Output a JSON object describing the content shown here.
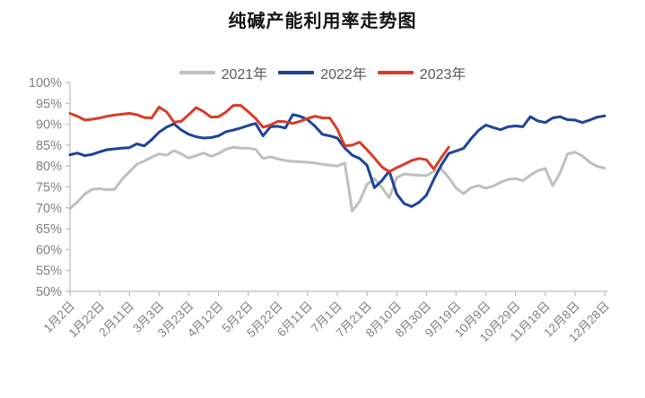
{
  "title": "纯碱产能利用率走势图",
  "chart_data": {
    "type": "line",
    "title": "纯碱产能利用率走势图",
    "grid": false,
    "legend_position": "top",
    "ylim": [
      50,
      100
    ],
    "y_tick_step": 5,
    "y_tick_labels": [
      "100%",
      "95%",
      "90%",
      "85%",
      "80%",
      "75%",
      "70%",
      "65%",
      "60%",
      "55%",
      "50%"
    ],
    "x_label_every": 4,
    "x_tick_labels": [
      "1月2日",
      "1月22日",
      "2月11日",
      "3月3日",
      "3月23日",
      "4月12日",
      "5月2日",
      "5月22日",
      "6月11日",
      "7月1日",
      "7月21日",
      "8月10日",
      "8月30日",
      "9月19日",
      "10月9日",
      "10月29日",
      "11月18日",
      "12月8日",
      "12月28日"
    ],
    "x": [
      "1月2日",
      "1月7日",
      "1月12日",
      "1月17日",
      "1月22日",
      "1月27日",
      "2月1日",
      "2月6日",
      "2月11日",
      "2月16日",
      "2月21日",
      "2月26日",
      "3月3日",
      "3月8日",
      "3月13日",
      "3月18日",
      "3月23日",
      "3月28日",
      "4月2日",
      "4月7日",
      "4月12日",
      "4月17日",
      "4月22日",
      "4月27日",
      "5月2日",
      "5月7日",
      "5月12日",
      "5月17日",
      "5月22日",
      "5月27日",
      "6月1日",
      "6月6日",
      "6月11日",
      "6月16日",
      "6月21日",
      "6月26日",
      "7月1日",
      "7月6日",
      "7月11日",
      "7月16日",
      "7月21日",
      "7月26日",
      "7月31日",
      "8月5日",
      "8月10日",
      "8月15日",
      "8月20日",
      "8月25日",
      "8月30日",
      "9月4日",
      "9月9日",
      "9月14日",
      "9月19日",
      "9月24日",
      "9月29日",
      "10月4日",
      "10月9日",
      "10月14日",
      "10月19日",
      "10月24日",
      "10月29日",
      "11月3日",
      "11月8日",
      "11月13日",
      "11月18日",
      "11月23日",
      "11月28日",
      "12月3日",
      "12月8日",
      "12月13日",
      "12月18日",
      "12月23日",
      "12月28日"
    ],
    "series": [
      {
        "name": "2021年",
        "color": "#bfbfbf",
        "values": [
          69.8,
          71.4,
          73.3,
          74.4,
          74.6,
          74.3,
          74.4,
          76.8,
          78.6,
          80.4,
          81.2,
          82.1,
          82.9,
          82.6,
          83.7,
          82.9,
          81.9,
          82.5,
          83.1,
          82.3,
          83.0,
          84.0,
          84.5,
          84.3,
          84.3,
          84.0,
          81.8,
          82.2,
          81.7,
          81.3,
          81.1,
          81.0,
          80.9,
          80.7,
          80.4,
          80.2,
          80.0,
          80.7,
          69.2,
          71.5,
          75.6,
          77.0,
          74.8,
          72.4,
          77.2,
          78.1,
          77.9,
          77.8,
          77.7,
          78.7,
          79.3,
          77.2,
          74.7,
          73.4,
          74.8,
          75.3,
          74.7,
          75.2,
          76.1,
          76.8,
          77.0,
          76.5,
          77.8,
          78.9,
          79.4,
          75.3,
          78.3,
          82.9,
          83.3,
          82.4,
          80.9,
          79.9,
          79.5
        ]
      },
      {
        "name": "2022年",
        "color": "#1c4499",
        "values": [
          82.7,
          83.1,
          82.5,
          82.8,
          83.4,
          83.9,
          84.1,
          84.3,
          84.4,
          85.3,
          84.8,
          86.3,
          88.1,
          89.3,
          90.1,
          88.6,
          87.6,
          87.0,
          86.7,
          86.8,
          87.2,
          88.2,
          88.6,
          89.1,
          89.7,
          90.2,
          87.2,
          89.4,
          89.5,
          89.1,
          92.3,
          91.9,
          91.1,
          89.5,
          87.6,
          87.2,
          86.7,
          84.3,
          82.6,
          81.8,
          80.2,
          74.8,
          76.5,
          78.8,
          73.3,
          71.0,
          70.3,
          71.3,
          73.0,
          76.8,
          80.2,
          83.0,
          83.6,
          84.2,
          86.5,
          88.5,
          89.8,
          89.2,
          88.7,
          89.4,
          89.6,
          89.4,
          91.8,
          90.8,
          90.4,
          91.5,
          91.8,
          91.1,
          91.0,
          90.4,
          91.0,
          91.7,
          92.0
        ]
      },
      {
        "name": "2023年",
        "color": "#da3b26",
        "values": [
          92.6,
          91.9,
          91.0,
          91.2,
          91.5,
          91.9,
          92.2,
          92.4,
          92.6,
          92.3,
          91.6,
          91.5,
          94.1,
          93.0,
          90.5,
          90.7,
          92.3,
          94.0,
          93.0,
          91.7,
          91.8,
          92.9,
          94.5,
          94.5,
          93.0,
          91.4,
          89.3,
          89.8,
          90.7,
          90.6,
          90.2,
          90.7,
          91.4,
          91.9,
          91.5,
          91.5,
          88.8,
          84.8,
          85.0,
          85.7,
          83.9,
          81.9,
          79.8,
          78.6,
          79.6,
          80.4,
          81.3,
          81.8,
          81.5,
          79.3,
          82.0,
          84.5
        ]
      }
    ]
  }
}
